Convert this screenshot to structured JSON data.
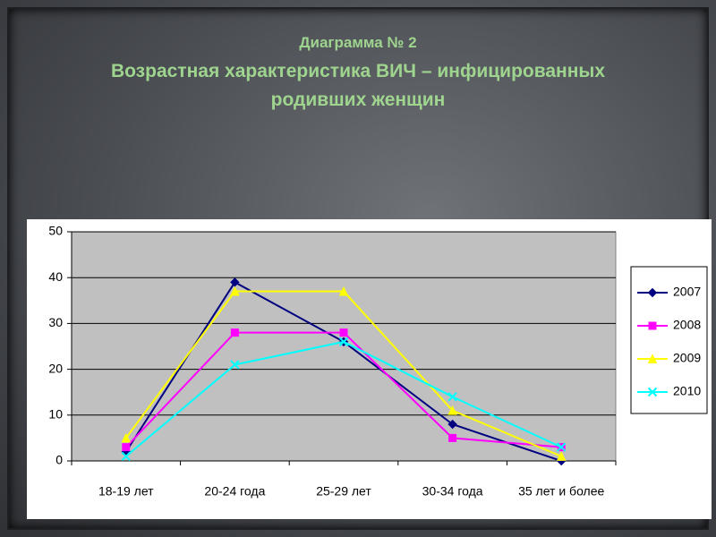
{
  "chart_data": {
    "type": "line",
    "title": "Диаграмма № 2",
    "subtitle": "Возрастная характеристика ВИЧ – инфицированных родивших женщин",
    "categories": [
      "18-19 лет",
      "20-24 года",
      "25-29 лет",
      "30-34 года",
      "35 лет и более"
    ],
    "series": [
      {
        "name": "2007",
        "color": "#000080",
        "marker": "diamond",
        "values": [
          2,
          39,
          26,
          8,
          0
        ]
      },
      {
        "name": "2008",
        "color": "#ff00ff",
        "marker": "square",
        "values": [
          3,
          28,
          28,
          5,
          3
        ]
      },
      {
        "name": "2009",
        "color": "#ffff00",
        "marker": "triangle",
        "values": [
          5,
          37,
          37,
          11,
          1
        ]
      },
      {
        "name": "2010",
        "color": "#00ffff",
        "marker": "x",
        "values": [
          1,
          21,
          26,
          14,
          3
        ]
      }
    ],
    "ylim": [
      0,
      50
    ],
    "yticks": [
      0,
      10,
      20,
      30,
      40,
      50
    ],
    "grid": true,
    "legend": "right"
  }
}
